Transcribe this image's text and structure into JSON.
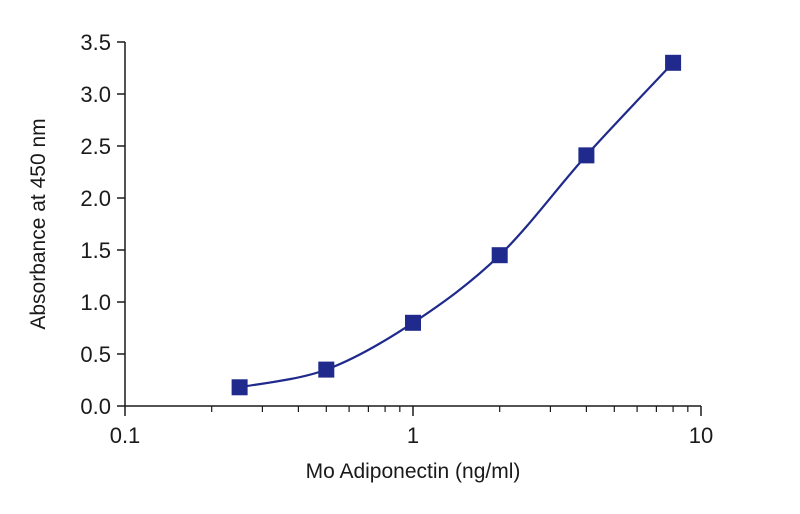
{
  "chart_data": {
    "type": "scatter",
    "xlabel": "Mo Adiponectin (ng/ml)",
    "ylabel": "Absorbance at 450 nm",
    "x_scale": "log",
    "xlim": [
      0.1,
      10
    ],
    "ylim": [
      0,
      3.5
    ],
    "x_ticks": [
      {
        "value": 0.1,
        "label": "0.1"
      },
      {
        "value": 1,
        "label": "1"
      },
      {
        "value": 10,
        "label": "10"
      }
    ],
    "y_ticks": [
      {
        "value": 0,
        "label": "0.0"
      },
      {
        "value": 0.5,
        "label": "0.5"
      },
      {
        "value": 1.0,
        "label": "1.0"
      },
      {
        "value": 1.5,
        "label": "1.5"
      },
      {
        "value": 2.0,
        "label": "2.0"
      },
      {
        "value": 2.5,
        "label": "2.5"
      },
      {
        "value": 3.0,
        "label": "3.0"
      },
      {
        "value": 3.5,
        "label": "3.5"
      }
    ],
    "grid": false,
    "legend": "none",
    "marker": "square",
    "fit_line": "smooth",
    "color": "#1f2a8c",
    "series": [
      {
        "x": [
          0.25,
          0.5,
          1,
          2,
          4,
          8
        ],
        "y": [
          0.18,
          0.35,
          0.8,
          1.45,
          2.41,
          3.3
        ]
      }
    ]
  }
}
